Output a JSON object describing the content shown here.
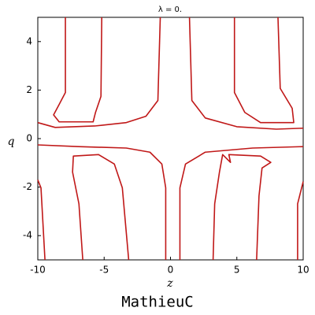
{
  "chart_data": {
    "type": "contour",
    "title": "λ = 0.",
    "xlabel": "z",
    "ylabel": "q",
    "caption": "MathieuC",
    "color": "#c01818",
    "xlim": [
      -10,
      10
    ],
    "ylim": [
      -5,
      5
    ],
    "xticks": [
      -10,
      -5,
      0,
      5,
      10
    ],
    "yticks": [
      -4,
      -2,
      0,
      2,
      4
    ],
    "curves": [
      {
        "x": [
          -7.92,
          -7.92,
          -8.39,
          -8.81,
          -8.39,
          -5.83,
          -5.65,
          -5.24,
          -5.18
        ],
        "y": [
          5,
          1.9,
          1.41,
          0.98,
          0.69,
          0.69,
          1.08,
          1.74,
          5
        ]
      },
      {
        "x": [
          -0.77,
          -0.95,
          -1.85,
          -3.33,
          -5.71,
          -8.69,
          -10
        ],
        "y": [
          5,
          1.57,
          0.92,
          0.66,
          0.52,
          0.46,
          0.66
        ]
      },
      {
        "x": [
          1.43,
          1.61,
          2.62,
          5,
          7.98,
          10
        ],
        "y": [
          5,
          1.57,
          0.85,
          0.49,
          0.39,
          0.43
        ]
      },
      {
        "x": [
          4.82,
          4.82,
          5.6,
          6.79,
          9.29,
          9.17,
          8.27,
          8.1
        ],
        "y": [
          5,
          1.9,
          1.08,
          0.66,
          0.66,
          1.25,
          2.07,
          5
        ]
      },
      {
        "x": [
          -10,
          -6.9,
          -3.33,
          -1.55,
          -0.65,
          -0.36,
          -0.36
        ],
        "y": [
          -0.26,
          -0.33,
          -0.39,
          -0.56,
          -1.05,
          -2.03,
          -5
        ]
      },
      {
        "x": [
          0.71,
          0.71,
          1.13,
          2.62,
          6.19,
          10
        ],
        "y": [
          -5,
          -2.03,
          -1.05,
          -0.56,
          -0.39,
          -0.33
        ]
      },
      {
        "x": [
          -6.61,
          -6.9,
          -7.38,
          -7.32,
          -5.42,
          -4.23,
          -3.63,
          -3.15
        ],
        "y": [
          -5,
          -2.69,
          -1.38,
          -0.72,
          -0.66,
          -1.05,
          -2.03,
          -5
        ]
      },
      {
        "x": [
          -10,
          -9.76,
          -9.46
        ],
        "y": [
          -1.7,
          -2.03,
          -5
        ]
      },
      {
        "x": [
          3.21,
          3.33,
          3.69,
          3.93,
          4.52,
          4.4,
          6.79,
          7.56,
          6.9,
          6.67,
          6.49
        ],
        "y": [
          -5,
          -2.69,
          -1.38,
          -0.66,
          -0.98,
          -0.66,
          -0.72,
          -0.98,
          -1.21,
          -2.36,
          -5
        ]
      },
      {
        "x": [
          10,
          9.58,
          9.58
        ],
        "y": [
          -1.77,
          -2.69,
          -5
        ]
      }
    ]
  }
}
